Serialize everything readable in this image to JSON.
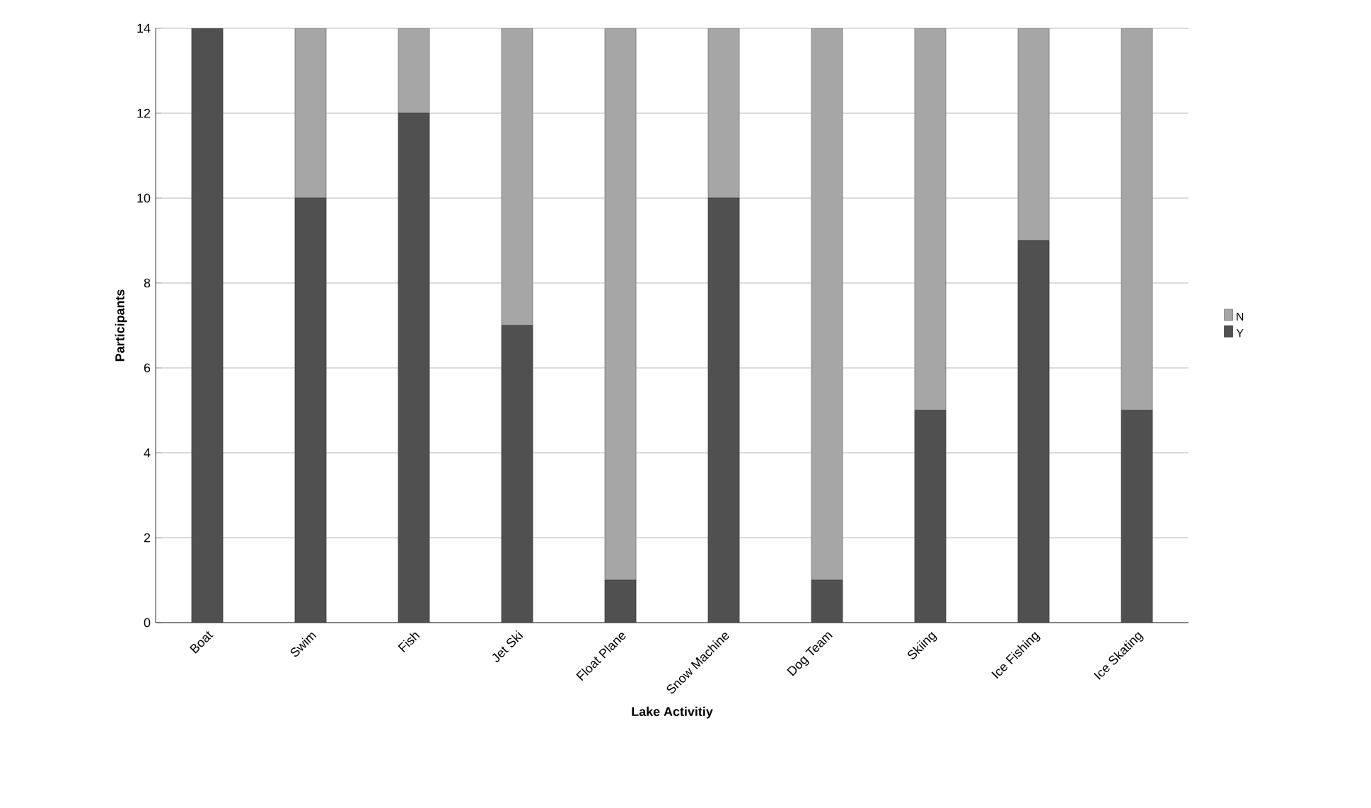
{
  "chart_data": {
    "type": "bar",
    "stacked": true,
    "xlabel": "Lake Activitiy",
    "ylabel": "Participants",
    "categories": [
      "Boat",
      "Swim",
      "Fish",
      "Jet Ski",
      "Float Plane",
      "Snow Machine",
      "Dog Team",
      "Skiing",
      "Ice Fishing",
      "Ice Skating"
    ],
    "series": [
      {
        "name": "Y",
        "color": "#505050",
        "values": [
          14,
          10,
          12,
          7,
          1,
          10,
          1,
          5,
          9,
          5
        ]
      },
      {
        "name": "N",
        "color": "#a6a6a6",
        "values": [
          0,
          4,
          2,
          7,
          13,
          4,
          13,
          9,
          5,
          9
        ]
      }
    ],
    "ylim": [
      0,
      14
    ],
    "yticks": [
      0,
      2,
      4,
      6,
      8,
      10,
      12,
      14
    ],
    "grid": "y",
    "legend": "right"
  }
}
